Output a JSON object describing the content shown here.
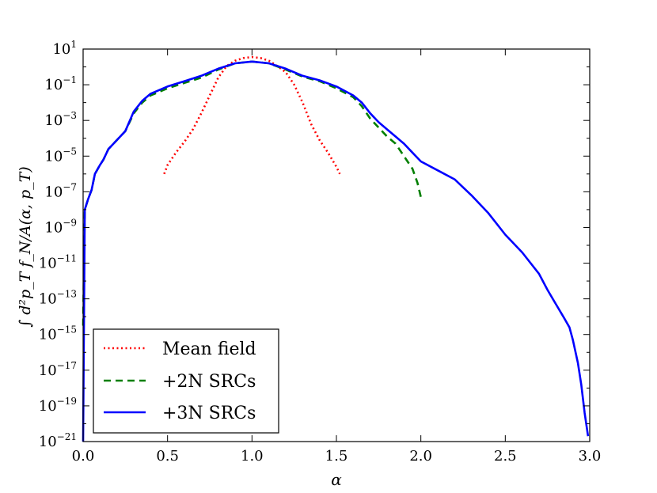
{
  "chart_data": {
    "type": "line",
    "title": "",
    "xlabel": "α",
    "ylabel": "∫ d²p_T f_N/A(α, p_T)",
    "xlim": [
      0.0,
      3.0
    ],
    "ylim_log10": [
      -21,
      1
    ],
    "yscale": "log",
    "grid": false,
    "legend_position": "bottom-left",
    "x_ticks": [
      {
        "value": 0.0,
        "label": "0.0"
      },
      {
        "value": 0.5,
        "label": "0.5"
      },
      {
        "value": 1.0,
        "label": "1.0"
      },
      {
        "value": 1.5,
        "label": "1.5"
      },
      {
        "value": 2.0,
        "label": "2.0"
      },
      {
        "value": 2.5,
        "label": "2.5"
      },
      {
        "value": 3.0,
        "label": "3.0"
      }
    ],
    "y_ticks": [
      {
        "exp": 1,
        "base": "10",
        "sup": "1"
      },
      {
        "exp": -1,
        "base": "10",
        "sup": "−1"
      },
      {
        "exp": -3,
        "base": "10",
        "sup": "−3"
      },
      {
        "exp": -5,
        "base": "10",
        "sup": "−5"
      },
      {
        "exp": -7,
        "base": "10",
        "sup": "−7"
      },
      {
        "exp": -9,
        "base": "10",
        "sup": "−9"
      },
      {
        "exp": -11,
        "base": "10",
        "sup": "−11"
      },
      {
        "exp": -13,
        "base": "10",
        "sup": "−13"
      },
      {
        "exp": -15,
        "base": "10",
        "sup": "−15"
      },
      {
        "exp": -17,
        "base": "10",
        "sup": "−17"
      },
      {
        "exp": -19,
        "base": "10",
        "sup": "−19"
      },
      {
        "exp": -21,
        "base": "10",
        "sup": "−21"
      }
    ],
    "series": [
      {
        "name": "Mean field",
        "color": "#ff0000",
        "style": "dotted",
        "x": [
          0.48,
          0.5,
          0.55,
          0.6,
          0.65,
          0.7,
          0.75,
          0.8,
          0.85,
          0.9,
          0.95,
          1.0,
          1.05,
          1.1,
          1.15,
          1.2,
          1.25,
          1.3,
          1.35,
          1.4,
          1.45,
          1.5,
          1.52
        ],
        "log10_y": [
          -6.0,
          -5.5,
          -4.8,
          -4.2,
          -3.5,
          -2.6,
          -1.6,
          -0.6,
          0.05,
          0.35,
          0.5,
          0.55,
          0.5,
          0.35,
          0.05,
          -0.3,
          -1.0,
          -2.0,
          -3.2,
          -4.1,
          -4.8,
          -5.6,
          -6.0
        ]
      },
      {
        "name": "+2N SRCs",
        "color": "#007f00",
        "style": "dashed",
        "x": [
          0.0,
          0.01,
          0.03,
          0.05,
          0.07,
          0.1,
          0.12,
          0.15,
          0.2,
          0.25,
          0.3,
          0.35,
          0.4,
          0.5,
          0.6,
          0.7,
          0.8,
          0.9,
          1.0,
          1.1,
          1.2,
          1.3,
          1.4,
          1.5,
          1.6,
          1.65,
          1.7,
          1.75,
          1.8,
          1.85,
          1.9,
          1.95,
          1.98,
          2.0
        ],
        "log10_y": [
          -14.5,
          -8.0,
          -7.4,
          -6.9,
          -6.0,
          -5.5,
          -5.2,
          -4.6,
          -4.1,
          -3.6,
          -2.6,
          -2.0,
          -1.6,
          -1.2,
          -0.9,
          -0.6,
          -0.15,
          0.2,
          0.3,
          0.2,
          -0.15,
          -0.55,
          -0.8,
          -1.2,
          -1.7,
          -2.2,
          -2.9,
          -3.4,
          -3.9,
          -4.3,
          -5.0,
          -5.7,
          -6.5,
          -7.3
        ]
      },
      {
        "name": "+3N SRCs",
        "color": "#0000ff",
        "style": "solid",
        "x": [
          0.0,
          0.01,
          0.03,
          0.05,
          0.07,
          0.1,
          0.12,
          0.15,
          0.2,
          0.25,
          0.3,
          0.35,
          0.4,
          0.5,
          0.6,
          0.7,
          0.8,
          0.9,
          1.0,
          1.1,
          1.2,
          1.3,
          1.4,
          1.5,
          1.6,
          1.65,
          1.7,
          1.75,
          1.8,
          1.85,
          1.9,
          1.95,
          2.0,
          2.1,
          2.2,
          2.3,
          2.4,
          2.5,
          2.6,
          2.7,
          2.75,
          2.8,
          2.85,
          2.88,
          2.9,
          2.93,
          2.95,
          2.97,
          2.99
        ],
        "log10_y": [
          -21.0,
          -8.0,
          -7.4,
          -6.9,
          -6.0,
          -5.5,
          -5.2,
          -4.6,
          -4.1,
          -3.6,
          -2.5,
          -1.9,
          -1.5,
          -1.1,
          -0.8,
          -0.5,
          -0.1,
          0.2,
          0.3,
          0.2,
          -0.1,
          -0.5,
          -0.75,
          -1.1,
          -1.6,
          -2.0,
          -2.6,
          -3.1,
          -3.5,
          -3.9,
          -4.3,
          -4.8,
          -5.3,
          -5.8,
          -6.3,
          -7.2,
          -8.2,
          -9.4,
          -10.4,
          -11.6,
          -12.5,
          -13.3,
          -14.1,
          -14.6,
          -15.3,
          -16.6,
          -17.8,
          -19.4,
          -20.7
        ]
      }
    ]
  }
}
